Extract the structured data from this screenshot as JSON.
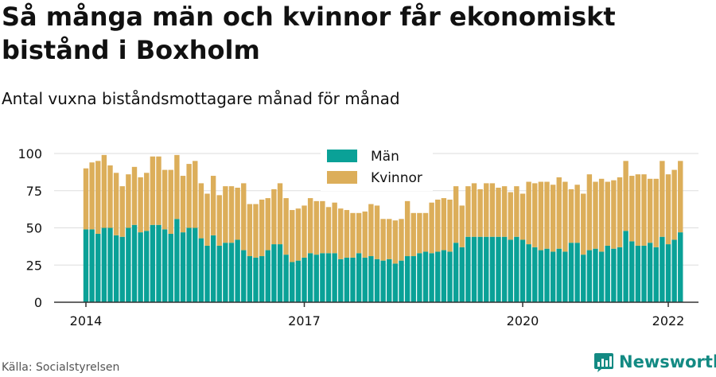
{
  "title": "Så många män och kvinnor får ekonomiskt bistånd i Boxholm",
  "subtitle": "Antal vuxna biståndsmottagare månad för månad",
  "source": "Källa: Socialstyrelsen",
  "brand": {
    "name": "Newsworthy"
  },
  "colors": {
    "men": "#0aa197",
    "women": "#dcae5a",
    "grid": "#dddddd",
    "axis": "#333333"
  },
  "chart_data": {
    "type": "bar",
    "stacked": true,
    "x_labels": [
      "2014",
      "2017",
      "2020",
      "2022"
    ],
    "x_start": "2014-01",
    "x_end": "2022-01",
    "ylim": [
      0,
      100
    ],
    "yticks": [
      0,
      25,
      50,
      75,
      100
    ],
    "legend": {
      "position": "top-center"
    },
    "series": [
      {
        "name": "Män",
        "color": "#0aa197",
        "values": [
          49,
          49,
          46,
          50,
          50,
          45,
          44,
          50,
          52,
          47,
          48,
          52,
          52,
          49,
          46,
          56,
          47,
          50,
          50,
          43,
          38,
          45,
          38,
          40,
          40,
          42,
          35,
          31,
          30,
          31,
          35,
          39,
          39,
          32,
          27,
          28,
          30,
          33,
          32,
          33,
          33,
          33,
          29,
          30,
          30,
          33,
          30,
          31,
          29,
          28,
          29,
          26,
          28,
          31,
          31,
          33,
          34,
          33,
          34,
          35,
          34,
          40,
          37,
          44,
          44,
          44,
          44,
          44,
          44,
          44,
          42,
          44,
          42,
          39,
          37,
          35,
          36,
          34,
          36,
          34,
          40,
          40,
          32,
          35,
          36,
          34,
          38,
          36,
          37,
          48,
          41,
          38,
          38,
          40,
          37,
          44,
          39,
          42,
          47
        ]
      },
      {
        "name": "Kvinnor",
        "color": "#dcae5a",
        "values": [
          41,
          45,
          49,
          49,
          42,
          42,
          34,
          36,
          39,
          37,
          39,
          46,
          46,
          40,
          43,
          43,
          38,
          43,
          45,
          37,
          35,
          40,
          34,
          38,
          38,
          35,
          45,
          35,
          36,
          38,
          35,
          37,
          41,
          38,
          35,
          35,
          35,
          37,
          36,
          35,
          31,
          34,
          34,
          32,
          30,
          27,
          31,
          35,
          36,
          28,
          27,
          29,
          28,
          37,
          29,
          27,
          26,
          34,
          35,
          35,
          35,
          38,
          28,
          34,
          36,
          32,
          36,
          36,
          33,
          34,
          32,
          34,
          31,
          42,
          43,
          46,
          45,
          45,
          48,
          47,
          36,
          39,
          41,
          51,
          45,
          49,
          43,
          46,
          47,
          47,
          44,
          48,
          48,
          43,
          46,
          51,
          47,
          47,
          48
        ]
      }
    ]
  }
}
